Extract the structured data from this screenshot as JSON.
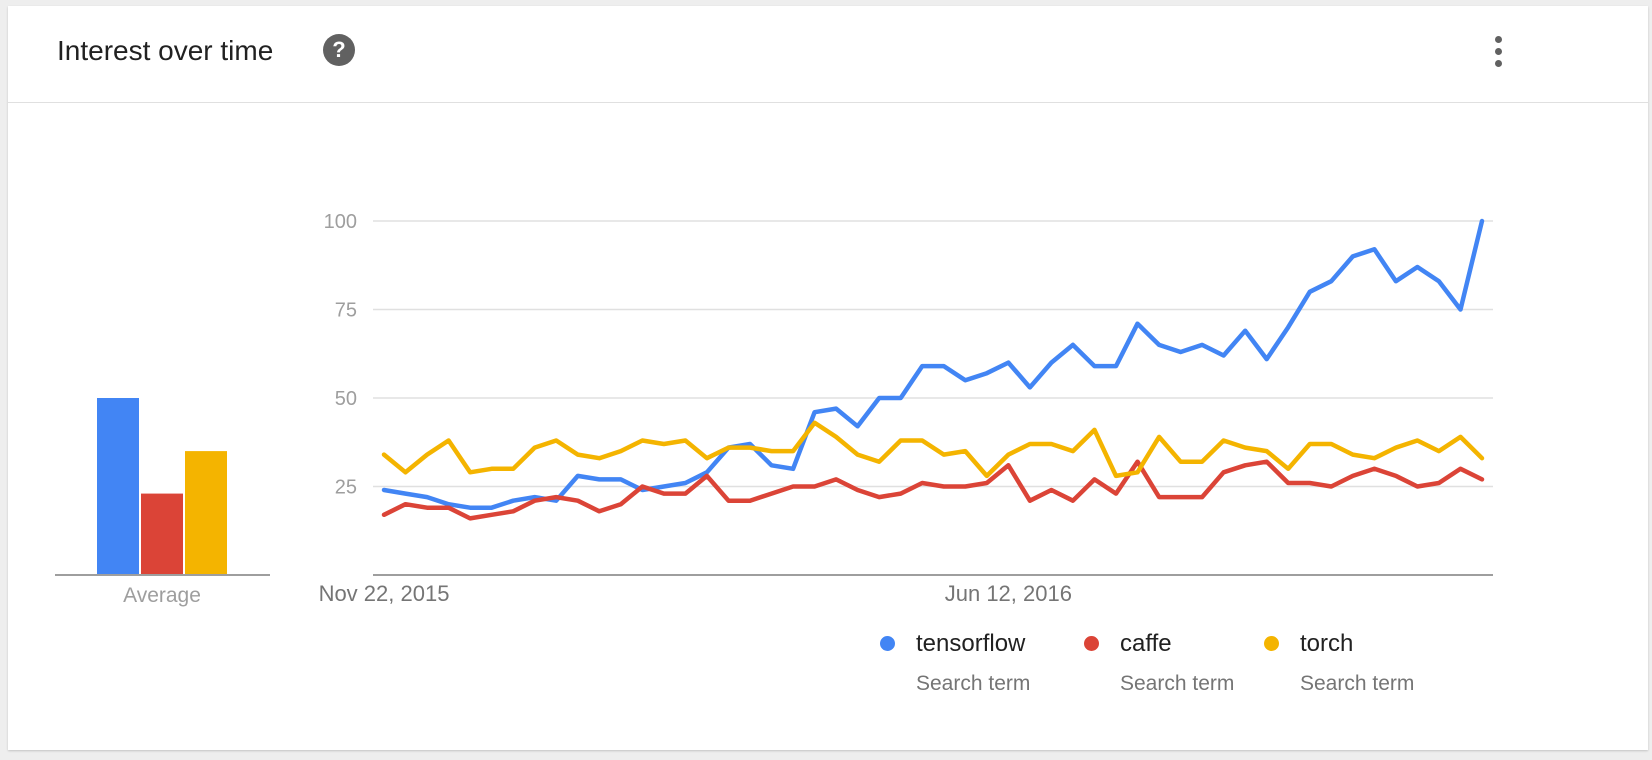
{
  "header": {
    "title": "Interest over time",
    "help_icon": "help-icon",
    "help_glyph": "?",
    "menu_icon": "more-vert-icon"
  },
  "chart_data": {
    "type": "line",
    "y_ticks": [
      100,
      75,
      50,
      25
    ],
    "ylim": [
      0,
      100
    ],
    "x_tick_labels": [
      "Nov 22, 2015",
      "Jun 12, 2016"
    ],
    "x_tick_indices": [
      0,
      29
    ],
    "grid": true,
    "legend_position": "bottom-right",
    "series": [
      {
        "name": "tensorflow",
        "subtitle": "Search term",
        "color": "#4285f4",
        "values": [
          24,
          23,
          22,
          20,
          19,
          19,
          21,
          22,
          21,
          28,
          27,
          27,
          24,
          25,
          26,
          29,
          36,
          37,
          31,
          30,
          46,
          47,
          42,
          50,
          50,
          59,
          59,
          55,
          57,
          60,
          53,
          60,
          65,
          59,
          59,
          71,
          65,
          63,
          65,
          62,
          69,
          61,
          70,
          80,
          83,
          90,
          92,
          83,
          87,
          83,
          75,
          100
        ]
      },
      {
        "name": "caffe",
        "subtitle": "Search term",
        "color": "#db4437",
        "values": [
          17,
          20,
          19,
          19,
          16,
          17,
          18,
          21,
          22,
          21,
          18,
          20,
          25,
          23,
          23,
          28,
          21,
          21,
          23,
          25,
          25,
          27,
          24,
          22,
          23,
          26,
          25,
          25,
          26,
          31,
          21,
          24,
          21,
          27,
          23,
          32,
          22,
          22,
          22,
          29,
          31,
          32,
          26,
          26,
          25,
          28,
          30,
          28,
          25,
          26,
          30,
          27
        ]
      },
      {
        "name": "torch",
        "subtitle": "Search term",
        "color": "#f4b400",
        "values": [
          34,
          29,
          34,
          38,
          29,
          30,
          30,
          36,
          38,
          34,
          33,
          35,
          38,
          37,
          38,
          33,
          36,
          36,
          35,
          35,
          43,
          39,
          34,
          32,
          38,
          38,
          34,
          35,
          28,
          34,
          37,
          37,
          35,
          41,
          28,
          29,
          39,
          32,
          32,
          38,
          36,
          35,
          30,
          37,
          37,
          34,
          33,
          36,
          38,
          35,
          39,
          33
        ]
      }
    ],
    "average": {
      "label": "Average",
      "values": [
        50,
        23,
        35
      ]
    }
  }
}
